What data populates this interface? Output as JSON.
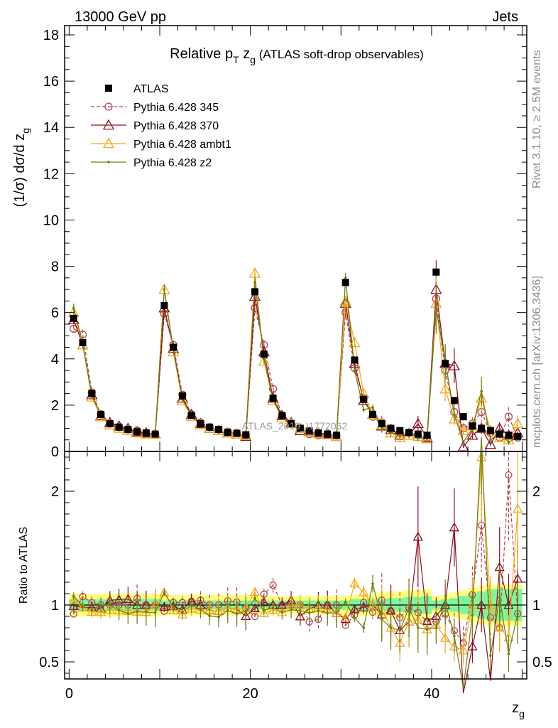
{
  "header": {
    "left": "13000 GeV pp",
    "right": "Jets"
  },
  "side_labels": {
    "rivet": "Rivet 3.1.10, ≥ 2.5M events",
    "mcplots": "mcplots.cern.ch [arXiv:1306.3436]"
  },
  "watermark": "ATLAS_2019_I1772062",
  "colors": {
    "ATLAS": "#000000",
    "p345": "#b5444f",
    "p370": "#8b0f24",
    "ambt1": "#f5a81c",
    "z2": "#6f7d12",
    "band_yellow": "#ffff7f",
    "band_green": "#7ff59a"
  },
  "chart_data": [
    {
      "panel": "main",
      "type": "scatter",
      "title": {
        "main": "Relative p",
        "sub1": "T",
        "mid": " z",
        "sub2": "g",
        "note": " (ATLAS soft-drop observables)"
      },
      "ylabel": {
        "prefix": "(1/σ) dσ/d z",
        "sub": "g"
      },
      "ylim": [
        0,
        18.4
      ],
      "xlim": [
        -0.5,
        50.5
      ],
      "yticks": [
        "0",
        "2",
        "4",
        "6",
        "8",
        "10",
        "12",
        "14",
        "16",
        "18"
      ],
      "legend": [
        "ATLAS",
        "Pythia 6.428 345",
        "Pythia 6.428 370",
        "Pythia 6.428 ambt1",
        "Pythia 6.428 z2"
      ],
      "x": [
        0.5,
        1.5,
        2.5,
        3.5,
        4.5,
        5.5,
        6.5,
        7.5,
        8.5,
        9.5,
        10.5,
        11.5,
        12.5,
        13.5,
        14.5,
        15.5,
        16.5,
        17.5,
        18.5,
        19.5,
        20.5,
        21.5,
        22.5,
        23.5,
        24.5,
        25.5,
        26.5,
        27.5,
        28.5,
        29.5,
        30.5,
        31.5,
        32.5,
        33.5,
        34.5,
        35.5,
        36.5,
        37.5,
        38.5,
        39.5,
        40.5,
        41.5,
        42.5,
        43.5,
        44.5,
        45.5,
        46.5,
        47.5,
        48.5,
        49.5
      ],
      "series": [
        {
          "name": "ATLAS",
          "values": [
            5.75,
            4.7,
            2.5,
            1.6,
            1.2,
            1.05,
            0.95,
            0.85,
            0.8,
            0.75,
            6.3,
            4.5,
            2.4,
            1.55,
            1.2,
            1.05,
            0.95,
            0.82,
            0.78,
            0.72,
            6.9,
            4.2,
            2.3,
            1.55,
            1.2,
            1.0,
            0.88,
            0.8,
            0.75,
            0.7,
            7.3,
            3.95,
            2.25,
            1.6,
            1.2,
            1.0,
            0.9,
            0.82,
            0.75,
            0.7,
            7.75,
            3.8,
            2.2,
            1.5,
            1.1,
            1.0,
            0.9,
            0.75,
            0.7,
            0.65
          ]
        },
        {
          "name": "Pythia 6.428 345",
          "values": [
            5.3,
            5.05,
            2.55,
            1.6,
            1.2,
            1.05,
            0.95,
            0.9,
            0.8,
            0.75,
            5.95,
            4.6,
            2.45,
            1.6,
            1.25,
            1.05,
            0.95,
            0.85,
            0.8,
            0.7,
            6.2,
            4.6,
            2.7,
            1.55,
            1.2,
            1.0,
            0.75,
            0.7,
            0.75,
            0.7,
            6.0,
            3.6,
            2.3,
            1.5,
            1.25,
            0.95,
            0.8,
            0.8,
            0.7,
            0.6,
            6.6,
            3.5,
            1.7,
            1.0,
            1.2,
            1.7,
            0.8,
            0.6,
            1.5,
            0.6
          ]
        },
        {
          "name": "Pythia 6.428 370",
          "values": [
            5.7,
            4.6,
            2.45,
            1.55,
            1.25,
            1.1,
            1.0,
            0.85,
            0.8,
            0.75,
            6.2,
            4.45,
            2.3,
            1.6,
            1.2,
            1.0,
            0.9,
            0.8,
            0.75,
            0.65,
            6.7,
            4.3,
            2.3,
            1.55,
            1.25,
            0.9,
            0.85,
            0.8,
            0.75,
            0.65,
            6.4,
            3.8,
            2.2,
            1.6,
            1.1,
            0.95,
            0.7,
            0.7,
            1.2,
            0.6,
            7.0,
            3.8,
            3.7,
            0.2,
            0.7,
            1.0,
            0.3,
            1.0,
            0.7,
            0.8
          ]
        },
        {
          "name": "Pythia 6.428 ambt1",
          "values": [
            6.0,
            4.6,
            2.35,
            1.5,
            1.15,
            1.0,
            0.9,
            0.8,
            0.75,
            0.75,
            7.0,
            4.3,
            2.2,
            1.5,
            1.15,
            1.0,
            0.9,
            0.8,
            0.75,
            0.7,
            7.7,
            3.9,
            2.2,
            1.45,
            1.2,
            1.0,
            0.85,
            0.78,
            0.72,
            0.65,
            6.5,
            4.7,
            2.5,
            1.6,
            1.15,
            0.8,
            0.6,
            0.7,
            0.65,
            0.55,
            6.4,
            2.7,
            1.4,
            0.9,
            1.1,
            2.3,
            0.9,
            0.6,
            0.5,
            1.2
          ]
        },
        {
          "name": "Pythia 6.428 z2",
          "values": [
            6.2,
            4.65,
            2.4,
            1.6,
            1.2,
            1.0,
            0.88,
            0.8,
            0.75,
            0.7,
            7.0,
            4.4,
            2.25,
            1.55,
            1.15,
            0.95,
            0.85,
            0.78,
            0.72,
            0.68,
            7.3,
            4.0,
            2.25,
            1.45,
            1.15,
            0.95,
            0.82,
            0.76,
            0.7,
            0.65,
            7.5,
            3.5,
            1.8,
            1.9,
            1.05,
            0.8,
            0.7,
            0.8,
            0.6,
            0.55,
            6.2,
            3.9,
            1.6,
            0.4,
            1.0,
            2.6,
            0.5,
            0.8,
            0.4,
            0.6
          ]
        }
      ]
    },
    {
      "panel": "ratio",
      "type": "scatter",
      "ylabel": "Ratio to ATLAS",
      "xlabel": {
        "base": "z",
        "sub": "g"
      },
      "ylim": [
        0.35,
        2.35
      ],
      "yticks": [
        "0.5",
        "1",
        "2"
      ],
      "xticks": [
        "0",
        "20",
        "40"
      ],
      "series_note": "ratios of MC to ATLAS per bin",
      "band": {
        "stat_halfwidth": [
          0.05,
          0.05,
          0.05,
          0.05,
          0.05,
          0.05,
          0.05,
          0.05,
          0.05,
          0.05,
          0.04,
          0.04,
          0.04,
          0.04,
          0.04,
          0.04,
          0.04,
          0.04,
          0.04,
          0.04,
          0.04,
          0.04,
          0.04,
          0.04,
          0.04,
          0.04,
          0.04,
          0.04,
          0.04,
          0.04,
          0.04,
          0.05,
          0.05,
          0.05,
          0.05,
          0.06,
          0.06,
          0.07,
          0.07,
          0.08,
          0.04,
          0.05,
          0.06,
          0.08,
          0.1,
          0.12,
          0.14,
          0.14,
          0.14,
          0.14
        ],
        "total_halfwidth": [
          0.1,
          0.1,
          0.1,
          0.1,
          0.1,
          0.1,
          0.1,
          0.1,
          0.1,
          0.1,
          0.09,
          0.09,
          0.09,
          0.09,
          0.09,
          0.09,
          0.09,
          0.09,
          0.09,
          0.09,
          0.08,
          0.08,
          0.08,
          0.08,
          0.08,
          0.08,
          0.08,
          0.08,
          0.08,
          0.08,
          0.08,
          0.09,
          0.1,
          0.1,
          0.11,
          0.12,
          0.12,
          0.13,
          0.13,
          0.14,
          0.08,
          0.09,
          0.11,
          0.13,
          0.15,
          0.17,
          0.18,
          0.18,
          0.18,
          0.18
        ]
      }
    }
  ]
}
